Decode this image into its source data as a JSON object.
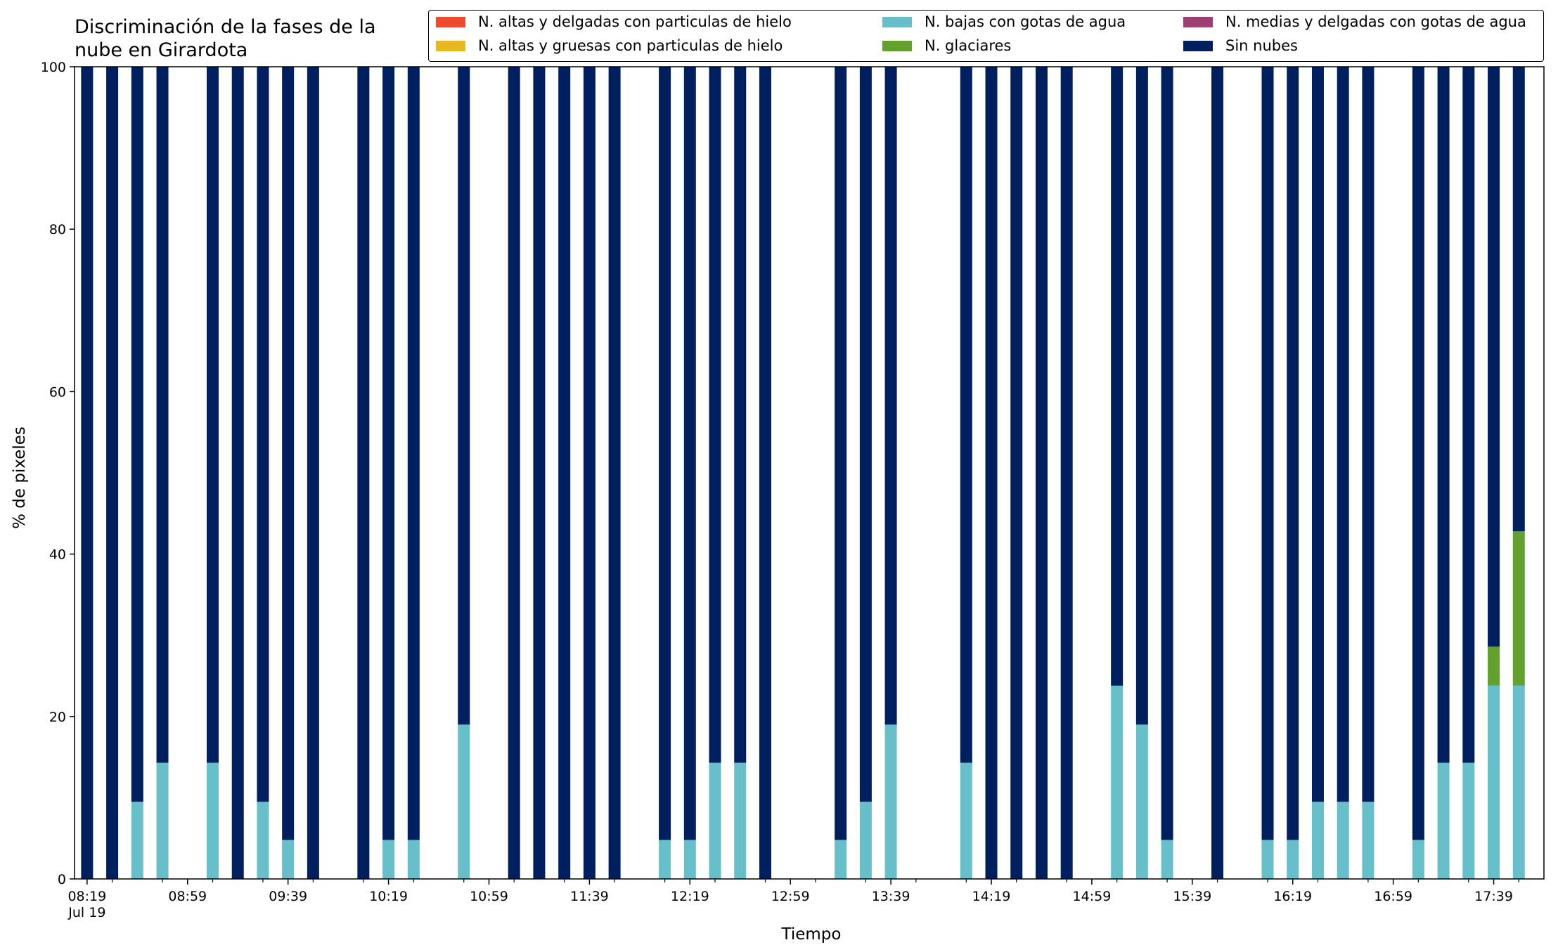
{
  "chart_data": {
    "type": "bar",
    "stacked": true,
    "title": "Discriminación de la fases de la\nnube en Girardota",
    "xlabel": "Tiempo",
    "ylabel": "% de pixeles",
    "ylim": [
      0,
      100
    ],
    "yticks": [
      0,
      20,
      40,
      60,
      80,
      100
    ],
    "xlim_minutes": [
      8.0,
      63.5
    ],
    "x_ticks": [
      {
        "pos": 8.5,
        "label": "08:19\nJul 19"
      },
      {
        "pos": 12.5,
        "label": "08:59"
      },
      {
        "pos": 16.5,
        "label": "09:39"
      },
      {
        "pos": 20.5,
        "label": "10:19"
      },
      {
        "pos": 24.5,
        "label": "10:59"
      },
      {
        "pos": 28.5,
        "label": "11:39"
      },
      {
        "pos": 32.5,
        "label": "12:19"
      },
      {
        "pos": 36.5,
        "label": "12:59"
      },
      {
        "pos": 40.5,
        "label": "13:39"
      },
      {
        "pos": 44.5,
        "label": "14:19"
      },
      {
        "pos": 48.5,
        "label": "14:59"
      },
      {
        "pos": 52.5,
        "label": "15:39"
      },
      {
        "pos": 56.5,
        "label": "16:19"
      },
      {
        "pos": 60.5,
        "label": "16:59"
      },
      {
        "pos": 64.5,
        "label": "17:39"
      }
    ],
    "legend_position": "top-right",
    "series": [
      {
        "name": "N. altas y delgadas con particulas de hielo",
        "color": "#ee4a2b"
      },
      {
        "name": "N. altas y gruesas con particulas de hielo",
        "color": "#e7b91e"
      },
      {
        "name": "N. bajas con gotas de agua",
        "color": "#66bfc9"
      },
      {
        "name": "N. glaciares",
        "color": "#62a12e"
      },
      {
        "name": "N. medias y delgadas con gotas de agua",
        "color": "#9e3e73"
      },
      {
        "name": "Sin nubes",
        "color": "#001f5e"
      }
    ],
    "bars": [
      {
        "pos": 8.5,
        "bajas": 0,
        "glaciares": 0,
        "sin_nubes": 100
      },
      {
        "pos": 9.5,
        "bajas": 0,
        "glaciares": 0,
        "sin_nubes": 100
      },
      {
        "pos": 10.5,
        "bajas": 9.5,
        "glaciares": 0,
        "sin_nubes": 90.5
      },
      {
        "pos": 11.5,
        "bajas": 14.3,
        "glaciares": 0,
        "sin_nubes": 85.7
      },
      {
        "pos": 13.5,
        "bajas": 14.3,
        "glaciares": 0,
        "sin_nubes": 85.7
      },
      {
        "pos": 14.5,
        "bajas": 0,
        "glaciares": 0,
        "sin_nubes": 100
      },
      {
        "pos": 15.5,
        "bajas": 9.5,
        "glaciares": 0,
        "sin_nubes": 90.5
      },
      {
        "pos": 16.5,
        "bajas": 4.8,
        "glaciares": 0,
        "sin_nubes": 95.2
      },
      {
        "pos": 17.5,
        "bajas": 0,
        "glaciares": 0,
        "sin_nubes": 100
      },
      {
        "pos": 19.5,
        "bajas": 0,
        "glaciares": 0,
        "sin_nubes": 100
      },
      {
        "pos": 20.5,
        "bajas": 4.8,
        "glaciares": 0,
        "sin_nubes": 95.2
      },
      {
        "pos": 21.5,
        "bajas": 4.8,
        "glaciares": 0,
        "sin_nubes": 95.2
      },
      {
        "pos": 23.5,
        "bajas": 19.0,
        "glaciares": 0,
        "sin_nubes": 81.0
      },
      {
        "pos": 25.5,
        "bajas": 0,
        "glaciares": 0,
        "sin_nubes": 100
      },
      {
        "pos": 26.5,
        "bajas": 0,
        "glaciares": 0,
        "sin_nubes": 100
      },
      {
        "pos": 27.5,
        "bajas": 0,
        "glaciares": 0,
        "sin_nubes": 100
      },
      {
        "pos": 28.5,
        "bajas": 0,
        "glaciares": 0,
        "sin_nubes": 100
      },
      {
        "pos": 29.5,
        "bajas": 0,
        "glaciares": 0,
        "sin_nubes": 100
      },
      {
        "pos": 31.5,
        "bajas": 4.8,
        "glaciares": 0,
        "sin_nubes": 95.2
      },
      {
        "pos": 32.5,
        "bajas": 4.8,
        "glaciares": 0,
        "sin_nubes": 95.2
      },
      {
        "pos": 33.5,
        "bajas": 14.3,
        "glaciares": 0,
        "sin_nubes": 85.7
      },
      {
        "pos": 34.5,
        "bajas": 14.3,
        "glaciares": 0,
        "sin_nubes": 85.7
      },
      {
        "pos": 35.5,
        "bajas": 0,
        "glaciares": 0,
        "sin_nubes": 100
      },
      {
        "pos": 38.5,
        "bajas": 4.8,
        "glaciares": 0,
        "sin_nubes": 95.2
      },
      {
        "pos": 39.5,
        "bajas": 9.5,
        "glaciares": 0,
        "sin_nubes": 90.5
      },
      {
        "pos": 40.5,
        "bajas": 19.0,
        "glaciares": 0,
        "sin_nubes": 81.0
      },
      {
        "pos": 43.5,
        "bajas": 14.3,
        "glaciares": 0,
        "sin_nubes": 85.7
      },
      {
        "pos": 44.5,
        "bajas": 0,
        "glaciares": 0,
        "sin_nubes": 100
      },
      {
        "pos": 45.5,
        "bajas": 0,
        "glaciares": 0,
        "sin_nubes": 100
      },
      {
        "pos": 46.5,
        "bajas": 0,
        "glaciares": 0,
        "sin_nubes": 100
      },
      {
        "pos": 47.5,
        "bajas": 0,
        "glaciares": 0,
        "sin_nubes": 100
      },
      {
        "pos": 49.5,
        "bajas": 23.8,
        "glaciares": 0,
        "sin_nubes": 76.2
      },
      {
        "pos": 50.5,
        "bajas": 19.0,
        "glaciares": 0,
        "sin_nubes": 81.0
      },
      {
        "pos": 51.5,
        "bajas": 4.8,
        "glaciares": 0,
        "sin_nubes": 95.2
      },
      {
        "pos": 53.5,
        "bajas": 0,
        "glaciares": 0,
        "sin_nubes": 100
      },
      {
        "pos": 55.5,
        "bajas": 4.8,
        "glaciares": 0,
        "sin_nubes": 95.2
      },
      {
        "pos": 56.5,
        "bajas": 4.8,
        "glaciares": 0,
        "sin_nubes": 95.2
      },
      {
        "pos": 57.5,
        "bajas": 9.5,
        "glaciares": 0,
        "sin_nubes": 90.5
      },
      {
        "pos": 58.5,
        "bajas": 9.5,
        "glaciares": 0,
        "sin_nubes": 90.5
      },
      {
        "pos": 59.5,
        "bajas": 9.5,
        "glaciares": 0,
        "sin_nubes": 90.5
      },
      {
        "pos": 61.5,
        "bajas": 4.8,
        "glaciares": 0,
        "sin_nubes": 95.2
      },
      {
        "pos": 62.5,
        "bajas": 14.3,
        "glaciares": 0,
        "sin_nubes": 85.7
      },
      {
        "pos": 63.5,
        "bajas": 14.3,
        "glaciares": 0,
        "sin_nubes": 85.7
      },
      {
        "pos": 64.5,
        "bajas": 23.8,
        "glaciares": 4.8,
        "sin_nubes": 71.4
      },
      {
        "pos": 65.5,
        "bajas": 23.8,
        "glaciares": 19.0,
        "sin_nubes": 57.2
      }
    ]
  }
}
